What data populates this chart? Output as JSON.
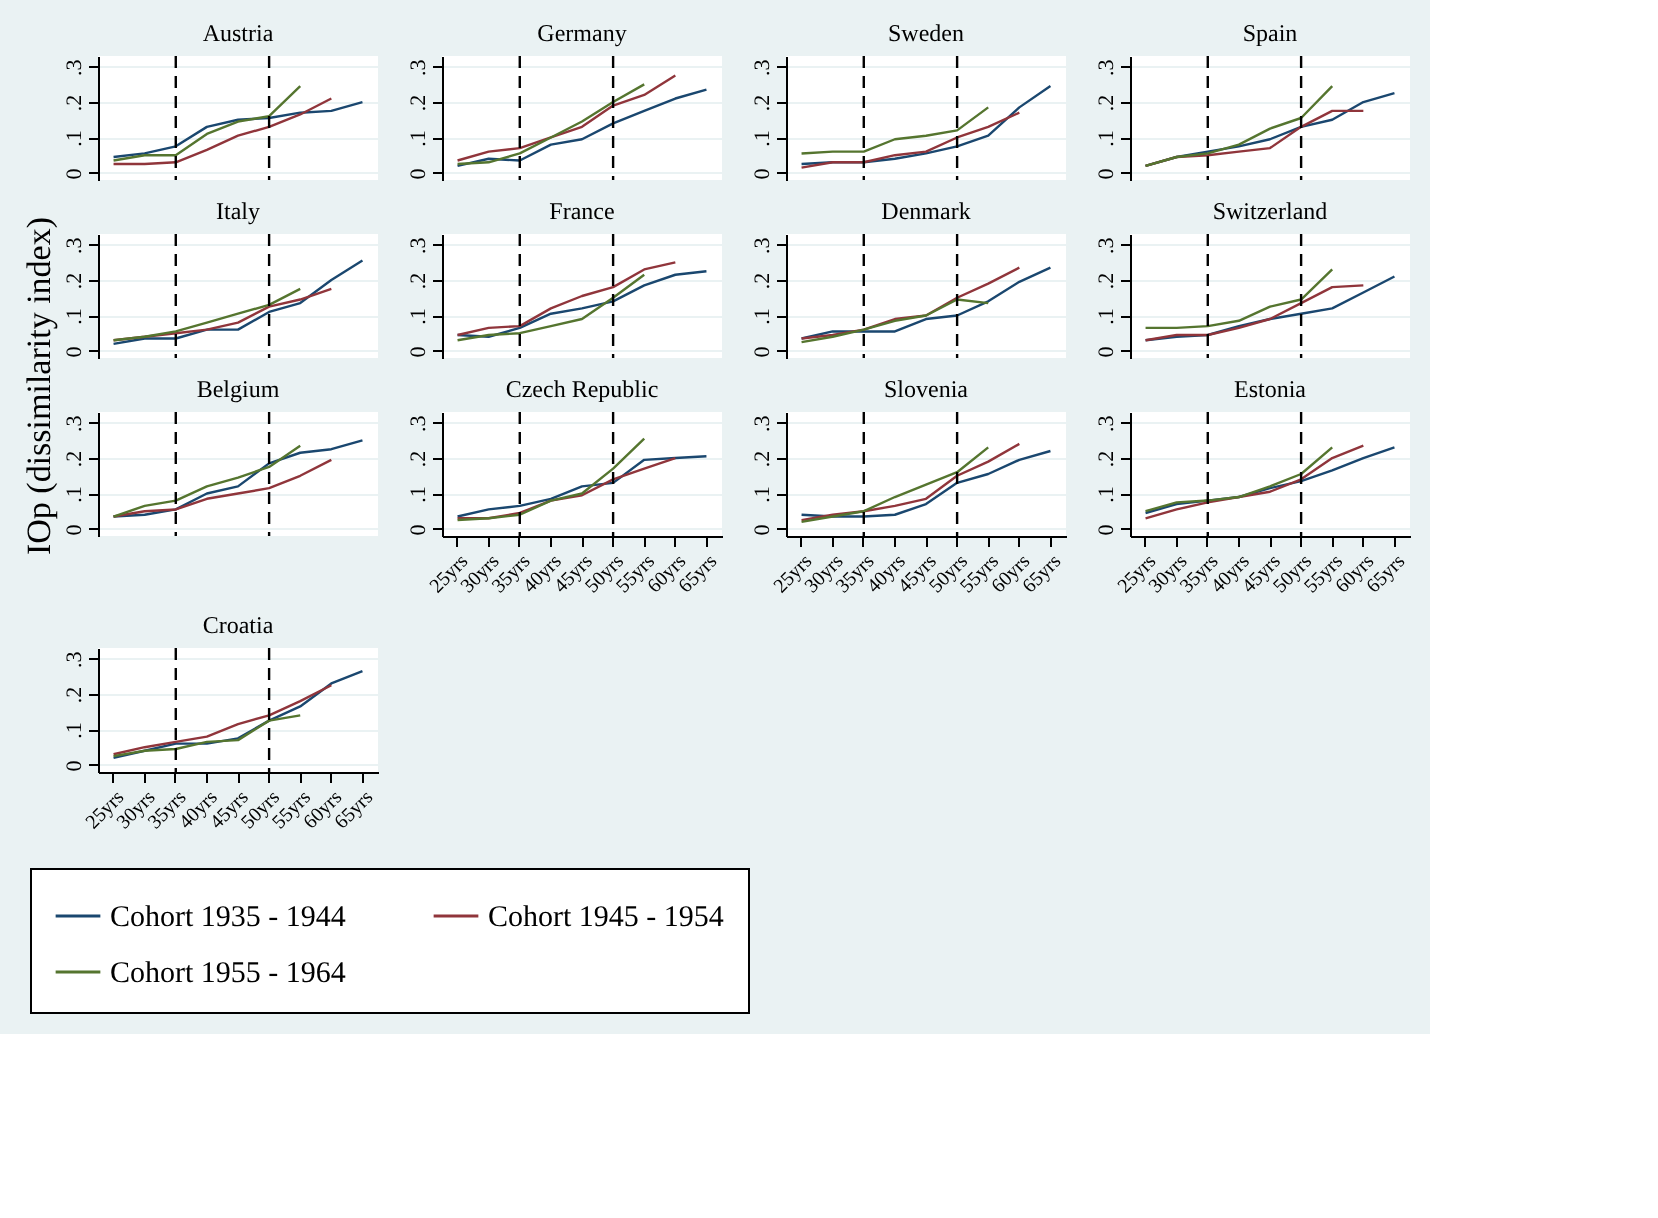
{
  "chart_data": [
    {
      "type": "line",
      "title": "Austria",
      "ylabel": "IOp (dissimilarity index)",
      "categories": [
        "25yrs",
        "30yrs",
        "35yrs",
        "40yrs",
        "45yrs",
        "50yrs",
        "55yrs",
        "60yrs",
        "65yrs"
      ],
      "series": [
        {
          "name": "Cohort 1935 - 1944",
          "color": "#1a476f",
          "values": [
            0.045,
            0.055,
            0.075,
            0.13,
            0.15,
            0.155,
            0.17,
            0.175,
            0.2
          ]
        },
        {
          "name": "Cohort 1945 - 1954",
          "color": "#90353b",
          "values": [
            0.025,
            0.025,
            0.03,
            0.065,
            0.105,
            0.13,
            0.165,
            0.21,
            null
          ]
        },
        {
          "name": "Cohort 1955 - 1964",
          "color": "#55752f",
          "values": [
            0.035,
            0.05,
            0.05,
            0.11,
            0.145,
            0.16,
            0.245,
            null,
            null
          ]
        }
      ],
      "ylim": [
        -0.02,
        0.33
      ],
      "yticks": [
        0,
        {
          "value": 0.1,
          "label": ".1"
        },
        {
          "value": 0.2,
          "label": ".2"
        },
        {
          "value": 0.3,
          "label": ".3"
        }
      ],
      "ref_lines": [
        {
          "axis": "x",
          "value": "35yrs",
          "line_style": "dashed",
          "color": "#000000"
        },
        {
          "axis": "x",
          "value": "50yrs",
          "line_style": "dashed",
          "color": "#000000"
        }
      ],
      "grid": "y",
      "tick_labels": "y",
      "legend": "bottom",
      "line_style": "solid"
    },
    {
      "type": "line",
      "title": "Germany",
      "categories": [
        "25yrs",
        "30yrs",
        "35yrs",
        "40yrs",
        "45yrs",
        "50yrs",
        "55yrs",
        "60yrs",
        "65yrs"
      ],
      "series": [
        {
          "name": "Cohort 1935 - 1944",
          "color": "#1a476f",
          "values": [
            0.02,
            0.04,
            0.035,
            0.08,
            0.095,
            0.14,
            0.175,
            0.21,
            0.235
          ]
        },
        {
          "name": "Cohort 1945 - 1954",
          "color": "#90353b",
          "values": [
            0.035,
            0.06,
            0.07,
            0.1,
            0.13,
            0.19,
            0.22,
            0.275,
            null
          ]
        },
        {
          "name": "Cohort 1955 - 1964",
          "color": "#55752f",
          "values": [
            0.025,
            0.03,
            0.055,
            0.1,
            0.145,
            0.2,
            0.25,
            null,
            null
          ]
        }
      ],
      "ylim": [
        -0.02,
        0.33
      ],
      "yticks": [
        0,
        {
          "value": 0.1,
          "label": ".1"
        },
        {
          "value": 0.2,
          "label": ".2"
        },
        {
          "value": 0.3,
          "label": ".3"
        }
      ],
      "ref_lines": [
        {
          "axis": "x",
          "value": "35yrs",
          "line_style": "dashed",
          "color": "#000000"
        },
        {
          "axis": "x",
          "value": "50yrs",
          "line_style": "dashed",
          "color": "#000000"
        }
      ],
      "grid": "y",
      "tick_labels": "y",
      "legend": "bottom",
      "line_style": "solid"
    },
    {
      "type": "line",
      "title": "Sweden",
      "categories": [
        "25yrs",
        "30yrs",
        "35yrs",
        "40yrs",
        "45yrs",
        "50yrs",
        "55yrs",
        "60yrs",
        "65yrs"
      ],
      "series": [
        {
          "name": "Cohort 1935 - 1944",
          "color": "#1a476f",
          "values": [
            0.025,
            0.03,
            0.03,
            0.04,
            0.055,
            0.075,
            0.105,
            0.185,
            0.245
          ]
        },
        {
          "name": "Cohort 1945 - 1954",
          "color": "#90353b",
          "values": [
            0.015,
            0.03,
            0.03,
            0.05,
            0.06,
            0.1,
            0.13,
            0.17,
            null
          ]
        },
        {
          "name": "Cohort 1955 - 1964",
          "color": "#55752f",
          "values": [
            0.055,
            0.06,
            0.06,
            0.095,
            0.105,
            0.12,
            0.185,
            null,
            null
          ]
        }
      ],
      "ylim": [
        -0.02,
        0.33
      ],
      "yticks": [
        0,
        {
          "value": 0.1,
          "label": ".1"
        },
        {
          "value": 0.2,
          "label": ".2"
        },
        {
          "value": 0.3,
          "label": ".3"
        }
      ],
      "ref_lines": [
        {
          "axis": "x",
          "value": "35yrs",
          "line_style": "dashed",
          "color": "#000000"
        },
        {
          "axis": "x",
          "value": "50yrs",
          "line_style": "dashed",
          "color": "#000000"
        }
      ],
      "grid": "y",
      "tick_labels": "y",
      "legend": "bottom",
      "line_style": "solid"
    },
    {
      "type": "line",
      "title": "Spain",
      "categories": [
        "25yrs",
        "30yrs",
        "35yrs",
        "40yrs",
        "45yrs",
        "50yrs",
        "55yrs",
        "60yrs",
        "65yrs"
      ],
      "series": [
        {
          "name": "Cohort 1935 - 1944",
          "color": "#1a476f",
          "values": [
            0.02,
            0.045,
            0.06,
            0.075,
            0.095,
            0.13,
            0.15,
            0.2,
            0.225
          ]
        },
        {
          "name": "Cohort 1945 - 1954",
          "color": "#90353b",
          "values": [
            0.02,
            0.045,
            0.05,
            0.06,
            0.07,
            0.13,
            0.175,
            0.175,
            null
          ]
        },
        {
          "name": "Cohort 1955 - 1964",
          "color": "#55752f",
          "values": [
            0.02,
            0.045,
            0.055,
            0.08,
            0.125,
            0.155,
            0.245,
            null,
            null
          ]
        }
      ],
      "ylim": [
        -0.02,
        0.33
      ],
      "yticks": [
        0,
        {
          "value": 0.1,
          "label": ".1"
        },
        {
          "value": 0.2,
          "label": ".2"
        },
        {
          "value": 0.3,
          "label": ".3"
        }
      ],
      "ref_lines": [
        {
          "axis": "x",
          "value": "35yrs",
          "line_style": "dashed",
          "color": "#000000"
        },
        {
          "axis": "x",
          "value": "50yrs",
          "line_style": "dashed",
          "color": "#000000"
        }
      ],
      "grid": "y",
      "tick_labels": "y",
      "legend": "bottom",
      "line_style": "solid"
    },
    {
      "type": "line",
      "title": "Italy",
      "categories": [
        "25yrs",
        "30yrs",
        "35yrs",
        "40yrs",
        "45yrs",
        "50yrs",
        "55yrs",
        "60yrs",
        "65yrs"
      ],
      "series": [
        {
          "name": "Cohort 1935 - 1944",
          "color": "#1a476f",
          "values": [
            0.02,
            0.035,
            0.035,
            0.06,
            0.06,
            0.11,
            0.135,
            0.2,
            0.255
          ]
        },
        {
          "name": "Cohort 1945 - 1954",
          "color": "#90353b",
          "values": [
            0.03,
            0.04,
            0.05,
            0.06,
            0.08,
            0.125,
            0.145,
            0.175,
            null
          ]
        },
        {
          "name": "Cohort 1955 - 1964",
          "color": "#55752f",
          "values": [
            0.03,
            0.04,
            0.055,
            0.08,
            0.105,
            0.13,
            0.175,
            null,
            null
          ]
        }
      ],
      "ylim": [
        -0.02,
        0.33
      ],
      "yticks": [
        0,
        {
          "value": 0.1,
          "label": ".1"
        },
        {
          "value": 0.2,
          "label": ".2"
        },
        {
          "value": 0.3,
          "label": ".3"
        }
      ],
      "ref_lines": [
        {
          "axis": "x",
          "value": "35yrs",
          "line_style": "dashed",
          "color": "#000000"
        },
        {
          "axis": "x",
          "value": "50yrs",
          "line_style": "dashed",
          "color": "#000000"
        }
      ],
      "grid": "y",
      "tick_labels": "y",
      "legend": "bottom",
      "line_style": "solid"
    },
    {
      "type": "line",
      "title": "France",
      "categories": [
        "25yrs",
        "30yrs",
        "35yrs",
        "40yrs",
        "45yrs",
        "50yrs",
        "55yrs",
        "60yrs",
        "65yrs"
      ],
      "series": [
        {
          "name": "Cohort 1935 - 1944",
          "color": "#1a476f",
          "values": [
            0.045,
            0.04,
            0.065,
            0.105,
            0.12,
            0.14,
            0.185,
            0.215,
            0.225
          ]
        },
        {
          "name": "Cohort 1945 - 1954",
          "color": "#90353b",
          "values": [
            0.045,
            0.065,
            0.07,
            0.12,
            0.155,
            0.18,
            0.23,
            0.25,
            null
          ]
        },
        {
          "name": "Cohort 1955 - 1964",
          "color": "#55752f",
          "values": [
            0.03,
            0.045,
            0.05,
            0.07,
            0.09,
            0.15,
            0.215,
            null,
            null
          ]
        }
      ],
      "ylim": [
        -0.02,
        0.33
      ],
      "yticks": [
        0,
        {
          "value": 0.1,
          "label": ".1"
        },
        {
          "value": 0.2,
          "label": ".2"
        },
        {
          "value": 0.3,
          "label": ".3"
        }
      ],
      "ref_lines": [
        {
          "axis": "x",
          "value": "35yrs",
          "line_style": "dashed",
          "color": "#000000"
        },
        {
          "axis": "x",
          "value": "50yrs",
          "line_style": "dashed",
          "color": "#000000"
        }
      ],
      "grid": "y",
      "tick_labels": "y",
      "legend": "bottom",
      "line_style": "solid"
    },
    {
      "type": "line",
      "title": "Denmark",
      "categories": [
        "25yrs",
        "30yrs",
        "35yrs",
        "40yrs",
        "45yrs",
        "50yrs",
        "55yrs",
        "60yrs",
        "65yrs"
      ],
      "series": [
        {
          "name": "Cohort 1935 - 1944",
          "color": "#1a476f",
          "values": [
            0.035,
            0.055,
            0.055,
            0.055,
            0.09,
            0.1,
            0.14,
            0.195,
            0.235
          ]
        },
        {
          "name": "Cohort 1945 - 1954",
          "color": "#90353b",
          "values": [
            0.035,
            0.045,
            0.06,
            0.09,
            0.1,
            0.15,
            0.19,
            0.235,
            null
          ]
        },
        {
          "name": "Cohort 1955 - 1964",
          "color": "#55752f",
          "values": [
            0.025,
            0.04,
            0.06,
            0.085,
            0.1,
            0.145,
            0.135,
            null,
            null
          ]
        }
      ],
      "ylim": [
        -0.02,
        0.33
      ],
      "yticks": [
        0,
        {
          "value": 0.1,
          "label": ".1"
        },
        {
          "value": 0.2,
          "label": ".2"
        },
        {
          "value": 0.3,
          "label": ".3"
        }
      ],
      "ref_lines": [
        {
          "axis": "x",
          "value": "35yrs",
          "line_style": "dashed",
          "color": "#000000"
        },
        {
          "axis": "x",
          "value": "50yrs",
          "line_style": "dashed",
          "color": "#000000"
        }
      ],
      "grid": "y",
      "tick_labels": "y",
      "legend": "bottom",
      "line_style": "solid"
    },
    {
      "type": "line",
      "title": "Switzerland",
      "categories": [
        "25yrs",
        "30yrs",
        "35yrs",
        "40yrs",
        "45yrs",
        "50yrs",
        "55yrs",
        "60yrs",
        "65yrs"
      ],
      "series": [
        {
          "name": "Cohort 1935 - 1944",
          "color": "#1a476f",
          "values": [
            0.03,
            0.04,
            0.045,
            0.07,
            0.09,
            0.105,
            0.12,
            0.165,
            0.21
          ]
        },
        {
          "name": "Cohort 1945 - 1954",
          "color": "#90353b",
          "values": [
            0.03,
            0.045,
            0.045,
            0.065,
            0.09,
            0.135,
            0.18,
            0.185,
            null
          ]
        },
        {
          "name": "Cohort 1955 - 1964",
          "color": "#55752f",
          "values": [
            0.065,
            0.065,
            0.07,
            0.085,
            0.125,
            0.145,
            0.23,
            null,
            null
          ]
        }
      ],
      "ylim": [
        -0.02,
        0.33
      ],
      "yticks": [
        0,
        {
          "value": 0.1,
          "label": ".1"
        },
        {
          "value": 0.2,
          "label": ".2"
        },
        {
          "value": 0.3,
          "label": ".3"
        }
      ],
      "ref_lines": [
        {
          "axis": "x",
          "value": "35yrs",
          "line_style": "dashed",
          "color": "#000000"
        },
        {
          "axis": "x",
          "value": "50yrs",
          "line_style": "dashed",
          "color": "#000000"
        }
      ],
      "grid": "y",
      "tick_labels": "y",
      "legend": "bottom",
      "line_style": "solid"
    },
    {
      "type": "line",
      "title": "Belgium",
      "categories": [
        "25yrs",
        "30yrs",
        "35yrs",
        "40yrs",
        "45yrs",
        "50yrs",
        "55yrs",
        "60yrs",
        "65yrs"
      ],
      "series": [
        {
          "name": "Cohort 1935 - 1944",
          "color": "#1a476f",
          "values": [
            0.035,
            0.04,
            0.055,
            0.1,
            0.12,
            0.185,
            0.215,
            0.225,
            0.25
          ]
        },
        {
          "name": "Cohort 1945 - 1954",
          "color": "#90353b",
          "values": [
            0.035,
            0.05,
            0.055,
            0.085,
            0.1,
            0.115,
            0.15,
            0.195,
            null
          ]
        },
        {
          "name": "Cohort 1955 - 1964",
          "color": "#55752f",
          "values": [
            0.035,
            0.065,
            0.08,
            0.12,
            0.145,
            0.175,
            0.235,
            null,
            null
          ]
        }
      ],
      "ylim": [
        -0.02,
        0.33
      ],
      "yticks": [
        0,
        {
          "value": 0.1,
          "label": ".1"
        },
        {
          "value": 0.2,
          "label": ".2"
        },
        {
          "value": 0.3,
          "label": ".3"
        }
      ],
      "ref_lines": [
        {
          "axis": "x",
          "value": "35yrs",
          "line_style": "dashed",
          "color": "#000000"
        },
        {
          "axis": "x",
          "value": "50yrs",
          "line_style": "dashed",
          "color": "#000000"
        }
      ],
      "grid": "y",
      "tick_labels": "y",
      "legend": "bottom",
      "line_style": "solid"
    },
    {
      "type": "line",
      "title": "Czech Republic",
      "categories": [
        "25yrs",
        "30yrs",
        "35yrs",
        "40yrs",
        "45yrs",
        "50yrs",
        "55yrs",
        "60yrs",
        "65yrs"
      ],
      "series": [
        {
          "name": "Cohort 1935 - 1944",
          "color": "#1a476f",
          "values": [
            0.035,
            0.055,
            0.065,
            0.085,
            0.12,
            0.13,
            0.195,
            0.2,
            0.205
          ]
        },
        {
          "name": "Cohort 1945 - 1954",
          "color": "#90353b",
          "values": [
            0.03,
            0.03,
            0.045,
            0.08,
            0.095,
            0.14,
            0.17,
            0.2,
            null
          ]
        },
        {
          "name": "Cohort 1955 - 1964",
          "color": "#55752f",
          "values": [
            0.025,
            0.03,
            0.04,
            0.08,
            0.1,
            0.17,
            0.255,
            null,
            null
          ]
        }
      ],
      "ylim": [
        -0.02,
        0.33
      ],
      "yticks": [
        0,
        {
          "value": 0.1,
          "label": ".1"
        },
        {
          "value": 0.2,
          "label": ".2"
        },
        {
          "value": 0.3,
          "label": ".3"
        }
      ],
      "ref_lines": [
        {
          "axis": "x",
          "value": "35yrs",
          "line_style": "dashed",
          "color": "#000000"
        },
        {
          "axis": "x",
          "value": "50yrs",
          "line_style": "dashed",
          "color": "#000000"
        }
      ],
      "grid": "y",
      "legend": "bottom",
      "line_style": "solid"
    },
    {
      "type": "line",
      "title": "Slovenia",
      "categories": [
        "25yrs",
        "30yrs",
        "35yrs",
        "40yrs",
        "45yrs",
        "50yrs",
        "55yrs",
        "60yrs",
        "65yrs"
      ],
      "series": [
        {
          "name": "Cohort 1935 - 1944",
          "color": "#1a476f",
          "values": [
            0.04,
            0.035,
            0.035,
            0.04,
            0.07,
            0.13,
            0.155,
            0.195,
            0.22
          ]
        },
        {
          "name": "Cohort 1945 - 1954",
          "color": "#90353b",
          "values": [
            0.025,
            0.04,
            0.05,
            0.065,
            0.085,
            0.15,
            0.19,
            0.24,
            null
          ]
        },
        {
          "name": "Cohort 1955 - 1964",
          "color": "#55752f",
          "values": [
            0.02,
            0.035,
            0.05,
            0.09,
            0.125,
            0.16,
            0.23,
            null,
            null
          ]
        }
      ],
      "ylim": [
        -0.02,
        0.33
      ],
      "yticks": [
        0,
        {
          "value": 0.1,
          "label": ".1"
        },
        {
          "value": 0.2,
          "label": ".2"
        },
        {
          "value": 0.3,
          "label": ".3"
        }
      ],
      "ref_lines": [
        {
          "axis": "x",
          "value": "35yrs",
          "line_style": "dashed",
          "color": "#000000"
        },
        {
          "axis": "x",
          "value": "50yrs",
          "line_style": "dashed",
          "color": "#000000"
        }
      ],
      "grid": "y",
      "legend": "bottom",
      "line_style": "solid"
    },
    {
      "type": "line",
      "title": "Estonia",
      "categories": [
        "25yrs",
        "30yrs",
        "35yrs",
        "40yrs",
        "45yrs",
        "50yrs",
        "55yrs",
        "60yrs",
        "65yrs"
      ],
      "series": [
        {
          "name": "Cohort 1935 - 1944",
          "color": "#1a476f",
          "values": [
            0.045,
            0.07,
            0.08,
            0.09,
            0.115,
            0.135,
            0.165,
            0.2,
            0.23
          ]
        },
        {
          "name": "Cohort 1945 - 1954",
          "color": "#90353b",
          "values": [
            0.03,
            0.055,
            0.075,
            0.09,
            0.105,
            0.14,
            0.2,
            0.235,
            null
          ]
        },
        {
          "name": "Cohort 1955 - 1964",
          "color": "#55752f",
          "values": [
            0.05,
            0.075,
            0.08,
            0.09,
            0.12,
            0.155,
            0.23,
            null,
            null
          ]
        }
      ],
      "ylim": [
        -0.02,
        0.33
      ],
      "yticks": [
        0,
        {
          "value": 0.1,
          "label": ".1"
        },
        {
          "value": 0.2,
          "label": ".2"
        },
        {
          "value": 0.3,
          "label": ".3"
        }
      ],
      "ref_lines": [
        {
          "axis": "x",
          "value": "35yrs",
          "line_style": "dashed",
          "color": "#000000"
        },
        {
          "axis": "x",
          "value": "50yrs",
          "line_style": "dashed",
          "color": "#000000"
        }
      ],
      "grid": "y",
      "legend": "bottom",
      "line_style": "solid"
    },
    {
      "type": "line",
      "title": "Croatia",
      "categories": [
        "25yrs",
        "30yrs",
        "35yrs",
        "40yrs",
        "45yrs",
        "50yrs",
        "55yrs",
        "60yrs",
        "65yrs"
      ],
      "series": [
        {
          "name": "Cohort 1935 - 1944",
          "color": "#1a476f",
          "values": [
            0.02,
            0.04,
            0.06,
            0.06,
            0.075,
            0.125,
            0.165,
            0.23,
            0.265
          ]
        },
        {
          "name": "Cohort 1945 - 1954",
          "color": "#90353b",
          "values": [
            0.03,
            0.05,
            0.065,
            0.08,
            0.115,
            0.14,
            0.18,
            0.225,
            null
          ]
        },
        {
          "name": "Cohort 1955 - 1964",
          "color": "#55752f",
          "values": [
            0.025,
            0.04,
            0.045,
            0.065,
            0.07,
            0.125,
            0.14,
            null,
            null
          ]
        }
      ],
      "ylim": [
        -0.02,
        0.33
      ],
      "yticks": [
        0,
        {
          "value": 0.1,
          "label": ".1"
        },
        {
          "value": 0.2,
          "label": ".2"
        },
        {
          "value": 0.3,
          "label": ".3"
        }
      ],
      "ref_lines": [
        {
          "axis": "x",
          "value": "35yrs",
          "line_style": "dashed",
          "color": "#000000"
        },
        {
          "axis": "x",
          "value": "50yrs",
          "line_style": "dashed",
          "color": "#000000"
        }
      ],
      "grid": "y",
      "legend": "bottom",
      "line_style": "solid"
    }
  ]
}
